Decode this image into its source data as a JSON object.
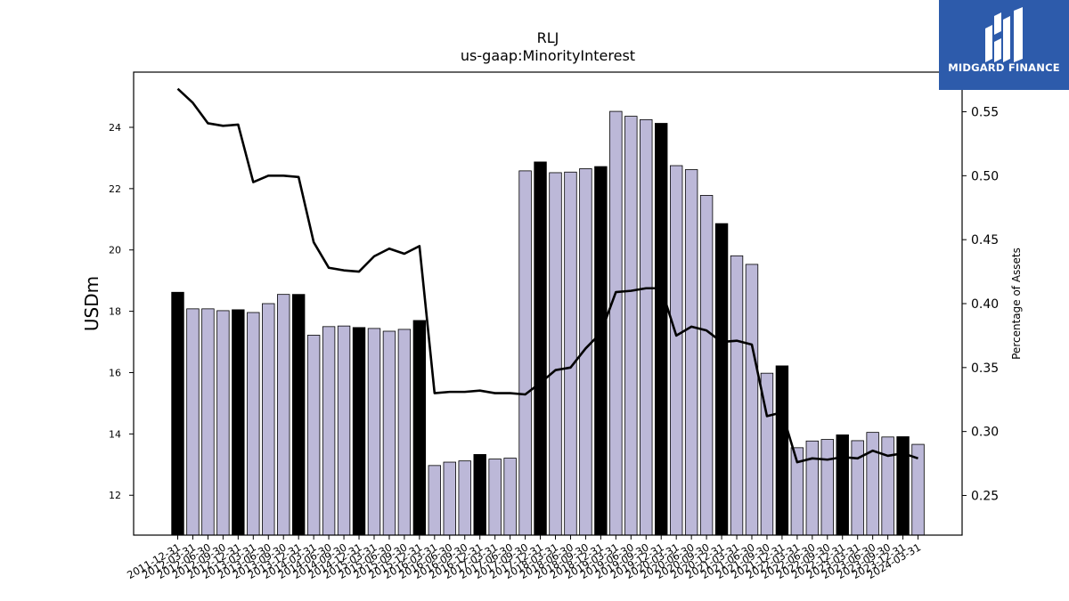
{
  "chart_data": {
    "type": "bar",
    "title": "RLJ",
    "subtitle": "us-gaap:MinorityInterest",
    "ylabel": "USDm",
    "y2label": "Percentage of Assets",
    "ylim": [
      10.7,
      25.8
    ],
    "y2lim": [
      0.219,
      0.581
    ],
    "yticks": [
      12,
      14,
      16,
      18,
      20,
      22,
      24
    ],
    "y2ticks": [
      0.25,
      0.3,
      0.35,
      0.4,
      0.45,
      0.5,
      0.55
    ],
    "bar_colors": {
      "default": "#bcb8d8",
      "highlight": "#000000"
    },
    "line_color": "#000000",
    "categories": [
      "2011-12-31",
      "2012-03-31",
      "2012-06-30",
      "2012-09-30",
      "2012-12-31",
      "2013-03-31",
      "2013-06-30",
      "2013-09-30",
      "2013-12-31",
      "2014-03-31",
      "2014-06-30",
      "2014-09-30",
      "2014-12-31",
      "2015-03-31",
      "2015-06-30",
      "2015-09-30",
      "2015-12-31",
      "2016-03-31",
      "2016-06-30",
      "2016-09-30",
      "2016-12-31",
      "2017-03-31",
      "2017-06-30",
      "2017-09-30",
      "2017-12-31",
      "2018-03-31",
      "2018-06-30",
      "2018-09-30",
      "2018-12-31",
      "2019-03-31",
      "2019-06-30",
      "2019-09-30",
      "2019-12-31",
      "2020-03-31",
      "2020-06-30",
      "2020-09-30",
      "2020-12-31",
      "2021-03-31",
      "2021-06-30",
      "2021-09-30",
      "2021-12-31",
      "2022-03-31",
      "2022-06-30",
      "2022-09-30",
      "2022-12-31",
      "2023-03-31",
      "2023-06-30",
      "2023-09-30",
      "2023-12-31",
      "2024-03-31"
    ],
    "series": [
      {
        "type": "bar",
        "axis": "left",
        "values": [
          18.62,
          18.08,
          18.08,
          18.02,
          18.05,
          17.96,
          18.25,
          18.55,
          18.55,
          17.22,
          17.5,
          17.52,
          17.47,
          17.44,
          17.35,
          17.41,
          17.7,
          12.97,
          13.08,
          13.12,
          13.33,
          13.18,
          13.21,
          22.58,
          22.87,
          22.52,
          22.54,
          22.65,
          22.72,
          24.52,
          24.36,
          24.25,
          24.13,
          22.75,
          22.62,
          21.78,
          20.86,
          19.81,
          19.53,
          15.98,
          16.22,
          13.55,
          13.77,
          13.82,
          13.97,
          13.78,
          14.05,
          13.9,
          13.91,
          13.66
        ],
        "highlight": [
          true,
          false,
          false,
          false,
          true,
          false,
          false,
          false,
          true,
          false,
          false,
          false,
          true,
          false,
          false,
          false,
          true,
          false,
          false,
          false,
          true,
          false,
          false,
          false,
          true,
          false,
          false,
          false,
          true,
          false,
          false,
          false,
          true,
          false,
          false,
          false,
          true,
          false,
          false,
          false,
          true,
          false,
          false,
          false,
          true,
          false,
          false,
          false,
          true,
          false
        ]
      },
      {
        "type": "line",
        "axis": "right",
        "values": [
          0.568,
          0.557,
          0.541,
          0.539,
          0.54,
          0.495,
          0.5,
          0.5,
          0.499,
          0.448,
          0.428,
          0.426,
          0.425,
          0.437,
          0.443,
          0.439,
          0.445,
          0.33,
          0.331,
          0.331,
          0.332,
          0.33,
          0.33,
          0.329,
          0.338,
          0.348,
          0.35,
          0.365,
          0.377,
          0.409,
          0.41,
          0.412,
          0.412,
          0.375,
          0.382,
          0.379,
          0.37,
          0.371,
          0.368,
          0.312,
          0.315,
          0.276,
          0.279,
          0.278,
          0.28,
          0.279,
          0.285,
          0.281,
          0.283,
          0.279
        ]
      }
    ]
  },
  "logo": {
    "text": "MIDGARD FINANCE"
  }
}
